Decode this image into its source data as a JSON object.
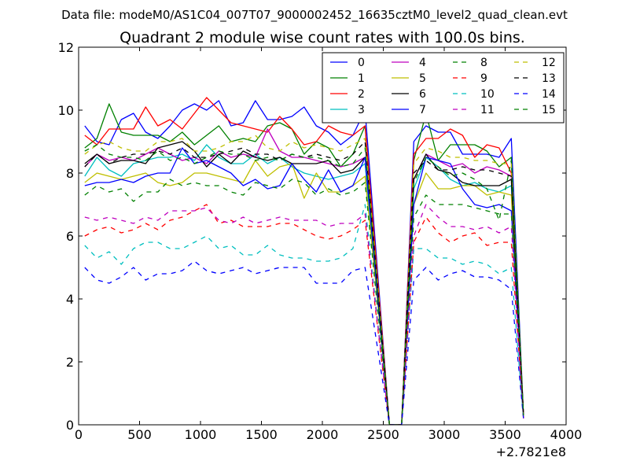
{
  "chart_data": {
    "type": "line",
    "suptitle": "Data file: modeM0/AS1C04_007T07_9000002452_16635cztM0_level2_quad_clean.evt",
    "title": "Quadrant 2 module wise count rates with 100.0s bins.",
    "xlabel": "",
    "ylabel": "",
    "xlim": [
      0,
      4000
    ],
    "ylim": [
      0,
      12
    ],
    "x_offset_label": "+2.7821e8",
    "xticks": [
      0,
      500,
      1000,
      1500,
      2000,
      2500,
      3000,
      3500,
      4000
    ],
    "yticks": [
      0,
      2,
      4,
      6,
      8,
      10,
      12
    ],
    "legend_position": "top-right",
    "x": [
      50,
      150,
      250,
      350,
      450,
      550,
      650,
      750,
      850,
      950,
      1050,
      1150,
      1250,
      1350,
      1450,
      1550,
      1650,
      1750,
      1850,
      1950,
      2050,
      2150,
      2250,
      2350,
      2450,
      2550,
      2650,
      2750,
      2850,
      2950,
      3050,
      3150,
      3250,
      3350,
      3450,
      3550,
      3650
    ],
    "series": [
      {
        "name": "0",
        "color": "#0000ff",
        "dash": "solid",
        "values": [
          9.5,
          9.0,
          8.9,
          9.7,
          9.9,
          9.3,
          9.1,
          9.5,
          10.0,
          10.2,
          10.0,
          10.3,
          9.5,
          9.6,
          10.3,
          9.7,
          9.7,
          9.8,
          10.1,
          9.5,
          9.3,
          8.9,
          9.2,
          10.0,
          5.0,
          0.0,
          0.0,
          9.0,
          9.5,
          9.3,
          9.3,
          8.6,
          8.6,
          8.6,
          8.5,
          9.1,
          0.3
        ]
      },
      {
        "name": "1",
        "color": "#008000",
        "dash": "solid",
        "values": [
          8.8,
          9.1,
          10.2,
          9.3,
          9.2,
          9.2,
          9.2,
          9.0,
          9.3,
          8.9,
          9.2,
          9.5,
          9.0,
          9.1,
          9.0,
          9.5,
          9.6,
          9.4,
          8.6,
          9.0,
          8.8,
          8.2,
          8.6,
          9.5,
          4.5,
          0.0,
          0.0,
          8.4,
          9.9,
          8.4,
          8.9,
          8.9,
          8.9,
          8.7,
          8.2,
          8.5,
          0.3
        ]
      },
      {
        "name": "2",
        "color": "#ff0000",
        "dash": "solid",
        "values": [
          9.2,
          8.9,
          9.4,
          9.4,
          9.4,
          10.1,
          9.5,
          9.7,
          9.4,
          9.9,
          10.4,
          10.0,
          9.6,
          9.5,
          9.4,
          9.3,
          9.8,
          9.4,
          8.9,
          9.0,
          9.5,
          9.3,
          9.2,
          9.5,
          4.8,
          0.0,
          0.0,
          8.6,
          9.1,
          9.1,
          9.4,
          9.2,
          8.5,
          8.9,
          8.8,
          8.0,
          0.3
        ]
      },
      {
        "name": "3",
        "color": "#00bfbf",
        "dash": "solid",
        "values": [
          7.9,
          8.5,
          8.1,
          7.9,
          8.3,
          8.4,
          8.5,
          8.5,
          8.6,
          8.4,
          8.9,
          8.5,
          8.3,
          8.3,
          8.6,
          8.3,
          8.5,
          8.2,
          8.0,
          7.9,
          7.8,
          7.9,
          8.0,
          8.3,
          4.2,
          0.0,
          0.0,
          7.5,
          8.5,
          8.2,
          7.8,
          7.6,
          7.7,
          7.5,
          7.4,
          7.6,
          0.3
        ]
      },
      {
        "name": "4",
        "color": "#bf00bf",
        "dash": "solid",
        "values": [
          8.2,
          8.6,
          8.4,
          8.5,
          8.4,
          8.6,
          8.8,
          8.6,
          8.4,
          8.5,
          8.3,
          8.7,
          8.5,
          8.6,
          8.5,
          9.4,
          8.7,
          8.5,
          8.5,
          8.4,
          8.3,
          8.2,
          8.3,
          8.5,
          4.3,
          0.0,
          0.0,
          7.8,
          8.6,
          8.4,
          8.2,
          8.3,
          8.0,
          8.2,
          8.1,
          7.9,
          0.3
        ]
      },
      {
        "name": "5",
        "color": "#bfbf00",
        "dash": "solid",
        "values": [
          7.7,
          8.0,
          7.9,
          7.8,
          7.9,
          8.0,
          7.7,
          7.6,
          7.7,
          8.0,
          8.0,
          7.9,
          7.8,
          7.7,
          8.4,
          7.9,
          8.2,
          8.3,
          7.2,
          8.0,
          7.4,
          7.4,
          7.6,
          7.9,
          4.0,
          0.0,
          0.0,
          7.0,
          8.0,
          7.5,
          7.5,
          7.6,
          7.6,
          7.3,
          7.4,
          7.3,
          0.2
        ]
      },
      {
        "name": "6",
        "color": "#000000",
        "dash": "solid",
        "values": [
          8.3,
          8.6,
          8.3,
          8.4,
          8.4,
          8.3,
          8.8,
          8.9,
          9.0,
          8.7,
          8.2,
          8.6,
          8.3,
          8.7,
          8.5,
          8.4,
          8.5,
          8.3,
          8.3,
          8.3,
          8.4,
          8.0,
          8.1,
          8.5,
          4.3,
          0.0,
          0.0,
          7.8,
          8.6,
          8.1,
          8.0,
          7.7,
          7.6,
          7.6,
          7.6,
          7.8,
          0.3
        ]
      },
      {
        "name": "7",
        "color": "#0000ff",
        "dash": "solid",
        "values": [
          7.6,
          7.7,
          7.7,
          7.8,
          7.7,
          7.9,
          8.0,
          8.0,
          8.8,
          8.3,
          8.4,
          8.2,
          8.0,
          7.6,
          7.8,
          7.5,
          7.6,
          8.3,
          7.8,
          7.4,
          8.1,
          7.4,
          7.6,
          8.5,
          4.2,
          0.0,
          0.0,
          7.0,
          8.5,
          8.4,
          8.3,
          7.5,
          7.0,
          6.9,
          7.0,
          6.8,
          0.3
        ]
      },
      {
        "name": "8",
        "color": "#008000",
        "dash": "dashed",
        "values": [
          7.3,
          7.6,
          7.4,
          7.5,
          7.1,
          7.4,
          7.4,
          7.8,
          7.6,
          7.7,
          7.6,
          7.6,
          7.4,
          7.3,
          7.7,
          7.6,
          7.5,
          7.8,
          7.7,
          7.3,
          7.5,
          7.3,
          7.4,
          7.7,
          3.8,
          0.0,
          0.0,
          6.6,
          7.3,
          7.0,
          7.0,
          7.0,
          6.9,
          6.8,
          6.7,
          6.7,
          0.3
        ]
      },
      {
        "name": "9",
        "color": "#ff0000",
        "dash": "dashed",
        "values": [
          6.0,
          6.2,
          6.3,
          6.1,
          6.2,
          6.4,
          6.2,
          6.5,
          6.6,
          6.8,
          7.0,
          6.4,
          6.5,
          6.3,
          6.3,
          6.3,
          6.4,
          6.4,
          6.2,
          6.0,
          5.9,
          6.0,
          6.2,
          6.5,
          3.2,
          0.0,
          0.0,
          5.8,
          6.6,
          6.1,
          5.8,
          6.0,
          6.1,
          5.7,
          5.8,
          5.8,
          0.2
        ]
      },
      {
        "name": "10",
        "color": "#00bfbf",
        "dash": "dashed",
        "values": [
          5.7,
          5.3,
          5.5,
          5.1,
          5.6,
          5.8,
          5.8,
          5.6,
          5.6,
          5.8,
          6.0,
          5.6,
          5.7,
          5.4,
          5.4,
          5.7,
          5.4,
          5.3,
          5.3,
          5.2,
          5.2,
          5.3,
          5.6,
          7.0,
          3.4,
          0.0,
          0.0,
          5.6,
          5.6,
          5.3,
          5.3,
          5.1,
          5.2,
          5.1,
          4.8,
          5.0,
          0.2
        ]
      },
      {
        "name": "11",
        "color": "#bf00bf",
        "dash": "dashed",
        "values": [
          6.6,
          6.5,
          6.6,
          6.5,
          6.4,
          6.6,
          6.5,
          6.8,
          6.8,
          6.8,
          6.9,
          6.5,
          6.4,
          6.6,
          6.4,
          6.5,
          6.6,
          6.5,
          6.5,
          6.5,
          6.3,
          6.4,
          6.4,
          6.7,
          3.3,
          0.0,
          0.0,
          6.0,
          7.0,
          6.6,
          6.3,
          6.3,
          6.2,
          6.3,
          6.1,
          6.3,
          0.2
        ]
      },
      {
        "name": "12",
        "color": "#bfbf00",
        "dash": "dashed",
        "values": [
          8.6,
          8.9,
          9.0,
          8.8,
          8.7,
          8.7,
          9.0,
          9.0,
          9.1,
          8.7,
          8.7,
          8.8,
          9.0,
          9.0,
          9.2,
          8.8,
          8.7,
          9.0,
          8.8,
          8.9,
          8.8,
          8.7,
          8.9,
          9.1,
          4.6,
          0.0,
          0.0,
          8.3,
          8.8,
          8.7,
          8.5,
          8.5,
          8.4,
          8.4,
          8.3,
          8.3,
          0.3
        ]
      },
      {
        "name": "13",
        "color": "#000000",
        "dash": "dashed",
        "values": [
          8.2,
          8.6,
          8.3,
          8.5,
          8.6,
          8.6,
          8.7,
          8.6,
          8.8,
          8.5,
          8.5,
          8.6,
          8.7,
          8.8,
          8.6,
          8.6,
          8.4,
          8.6,
          8.5,
          8.6,
          8.5,
          8.4,
          8.6,
          9.0,
          4.5,
          0.0,
          0.0,
          8.0,
          8.4,
          8.1,
          8.1,
          8.2,
          8.1,
          8.1,
          8.0,
          7.9,
          0.3
        ]
      },
      {
        "name": "14",
        "color": "#0000ff",
        "dash": "dashed",
        "values": [
          5.0,
          4.6,
          4.5,
          4.7,
          5.0,
          4.6,
          4.8,
          4.8,
          4.9,
          5.2,
          4.9,
          4.8,
          4.9,
          5.0,
          4.8,
          4.9,
          5.0,
          5.0,
          5.0,
          4.5,
          4.5,
          4.5,
          4.9,
          5.0,
          2.5,
          0.0,
          0.0,
          4.6,
          5.0,
          4.6,
          4.8,
          4.9,
          4.7,
          4.7,
          4.6,
          4.3,
          0.2
        ]
      },
      {
        "name": "15",
        "color": "#008000",
        "dash": "dashed",
        "values": [
          8.7,
          8.9,
          8.6,
          8.5,
          8.5,
          8.4,
          8.7,
          8.4,
          8.5,
          8.3,
          8.5,
          8.7,
          8.6,
          8.6,
          8.4,
          8.5,
          8.4,
          8.6,
          8.5,
          8.5,
          8.4,
          8.2,
          8.3,
          8.8,
          4.4,
          0.0,
          0.0,
          7.7,
          8.5,
          8.2,
          7.9,
          8.0,
          7.8,
          7.5,
          6.5,
          8.4,
          0.3
        ]
      }
    ]
  }
}
